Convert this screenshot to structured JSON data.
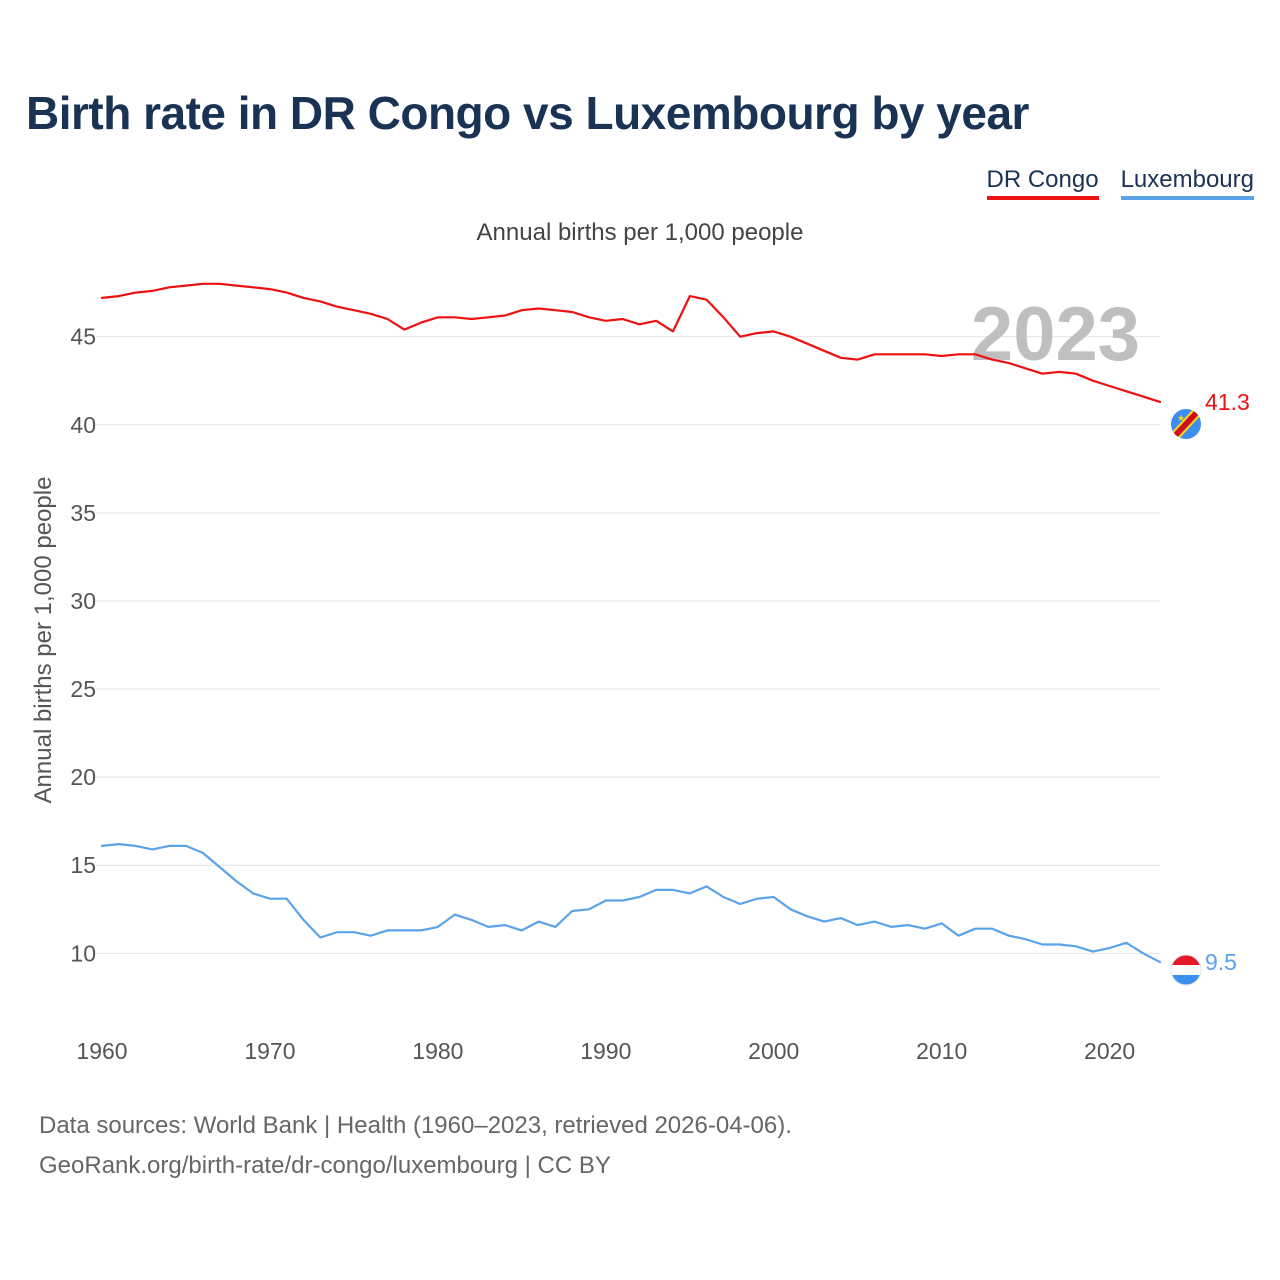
{
  "chart_data": {
    "type": "line",
    "title": "Birth rate in DR Congo vs Luxembourg by year",
    "subtitle": "Annual births per 1,000 people",
    "ylabel": "Annual births per 1,000 people",
    "xlabel": "",
    "year_label": "2023",
    "xlim": [
      1960,
      2023
    ],
    "ylim": [
      6.5,
      48.5
    ],
    "x_ticks": [
      1960,
      1970,
      1980,
      1990,
      2000,
      2010,
      2020
    ],
    "y_ticks": [
      10,
      15,
      20,
      25,
      30,
      35,
      40,
      45
    ],
    "grid": true,
    "legend_position": "top-right",
    "x": [
      1960,
      1961,
      1962,
      1963,
      1964,
      1965,
      1966,
      1967,
      1968,
      1969,
      1970,
      1971,
      1972,
      1973,
      1974,
      1975,
      1976,
      1977,
      1978,
      1979,
      1980,
      1981,
      1982,
      1983,
      1984,
      1985,
      1986,
      1987,
      1988,
      1989,
      1990,
      1991,
      1992,
      1993,
      1994,
      1995,
      1996,
      1997,
      1998,
      1999,
      2000,
      2001,
      2002,
      2003,
      2004,
      2005,
      2006,
      2007,
      2008,
      2009,
      2010,
      2011,
      2012,
      2013,
      2014,
      2015,
      2016,
      2017,
      2018,
      2019,
      2020,
      2021,
      2022,
      2023
    ],
    "series": [
      {
        "name": "DR Congo",
        "color": "#ee1111",
        "end_label": "41.3",
        "values": [
          47.2,
          47.3,
          47.5,
          47.6,
          47.8,
          47.9,
          48.0,
          48.0,
          47.9,
          47.8,
          47.7,
          47.5,
          47.2,
          47.0,
          46.7,
          46.5,
          46.3,
          46.0,
          45.4,
          45.8,
          46.1,
          46.1,
          46.0,
          46.1,
          46.2,
          46.5,
          46.6,
          46.5,
          46.4,
          46.1,
          45.9,
          46.0,
          45.7,
          45.9,
          45.3,
          47.3,
          47.1,
          46.1,
          45.0,
          45.2,
          45.3,
          45.0,
          44.6,
          44.2,
          43.8,
          43.7,
          44.0,
          44.0,
          44.0,
          44.0,
          43.9,
          44.0,
          44.0,
          43.7,
          43.5,
          43.2,
          42.9,
          43.0,
          42.9,
          42.5,
          42.2,
          41.9,
          41.6,
          41.3
        ]
      },
      {
        "name": "Luxembourg",
        "color": "#5ba3e8",
        "end_label": "9.5",
        "values": [
          16.1,
          16.2,
          16.1,
          15.9,
          16.1,
          16.1,
          15.7,
          14.9,
          14.1,
          13.4,
          13.1,
          13.1,
          11.9,
          10.9,
          11.2,
          11.2,
          11.0,
          11.3,
          11.3,
          11.3,
          11.5,
          12.2,
          11.9,
          11.5,
          11.6,
          11.3,
          11.8,
          11.5,
          12.4,
          12.5,
          13.0,
          13.0,
          13.2,
          13.6,
          13.6,
          13.4,
          13.8,
          13.2,
          12.8,
          13.1,
          13.2,
          12.5,
          12.1,
          11.8,
          12.0,
          11.6,
          11.8,
          11.5,
          11.6,
          11.4,
          11.7,
          11.0,
          11.4,
          11.4,
          11.0,
          10.8,
          10.5,
          10.5,
          10.4,
          10.1,
          10.3,
          10.6,
          10.0,
          9.5
        ]
      }
    ]
  },
  "footer": {
    "line1": "Data sources: World Bank | Health (1960–2023, retrieved 2026-04-06).",
    "line2": "GeoRank.org/birth-rate/dr-congo/luxembourg | CC BY"
  }
}
